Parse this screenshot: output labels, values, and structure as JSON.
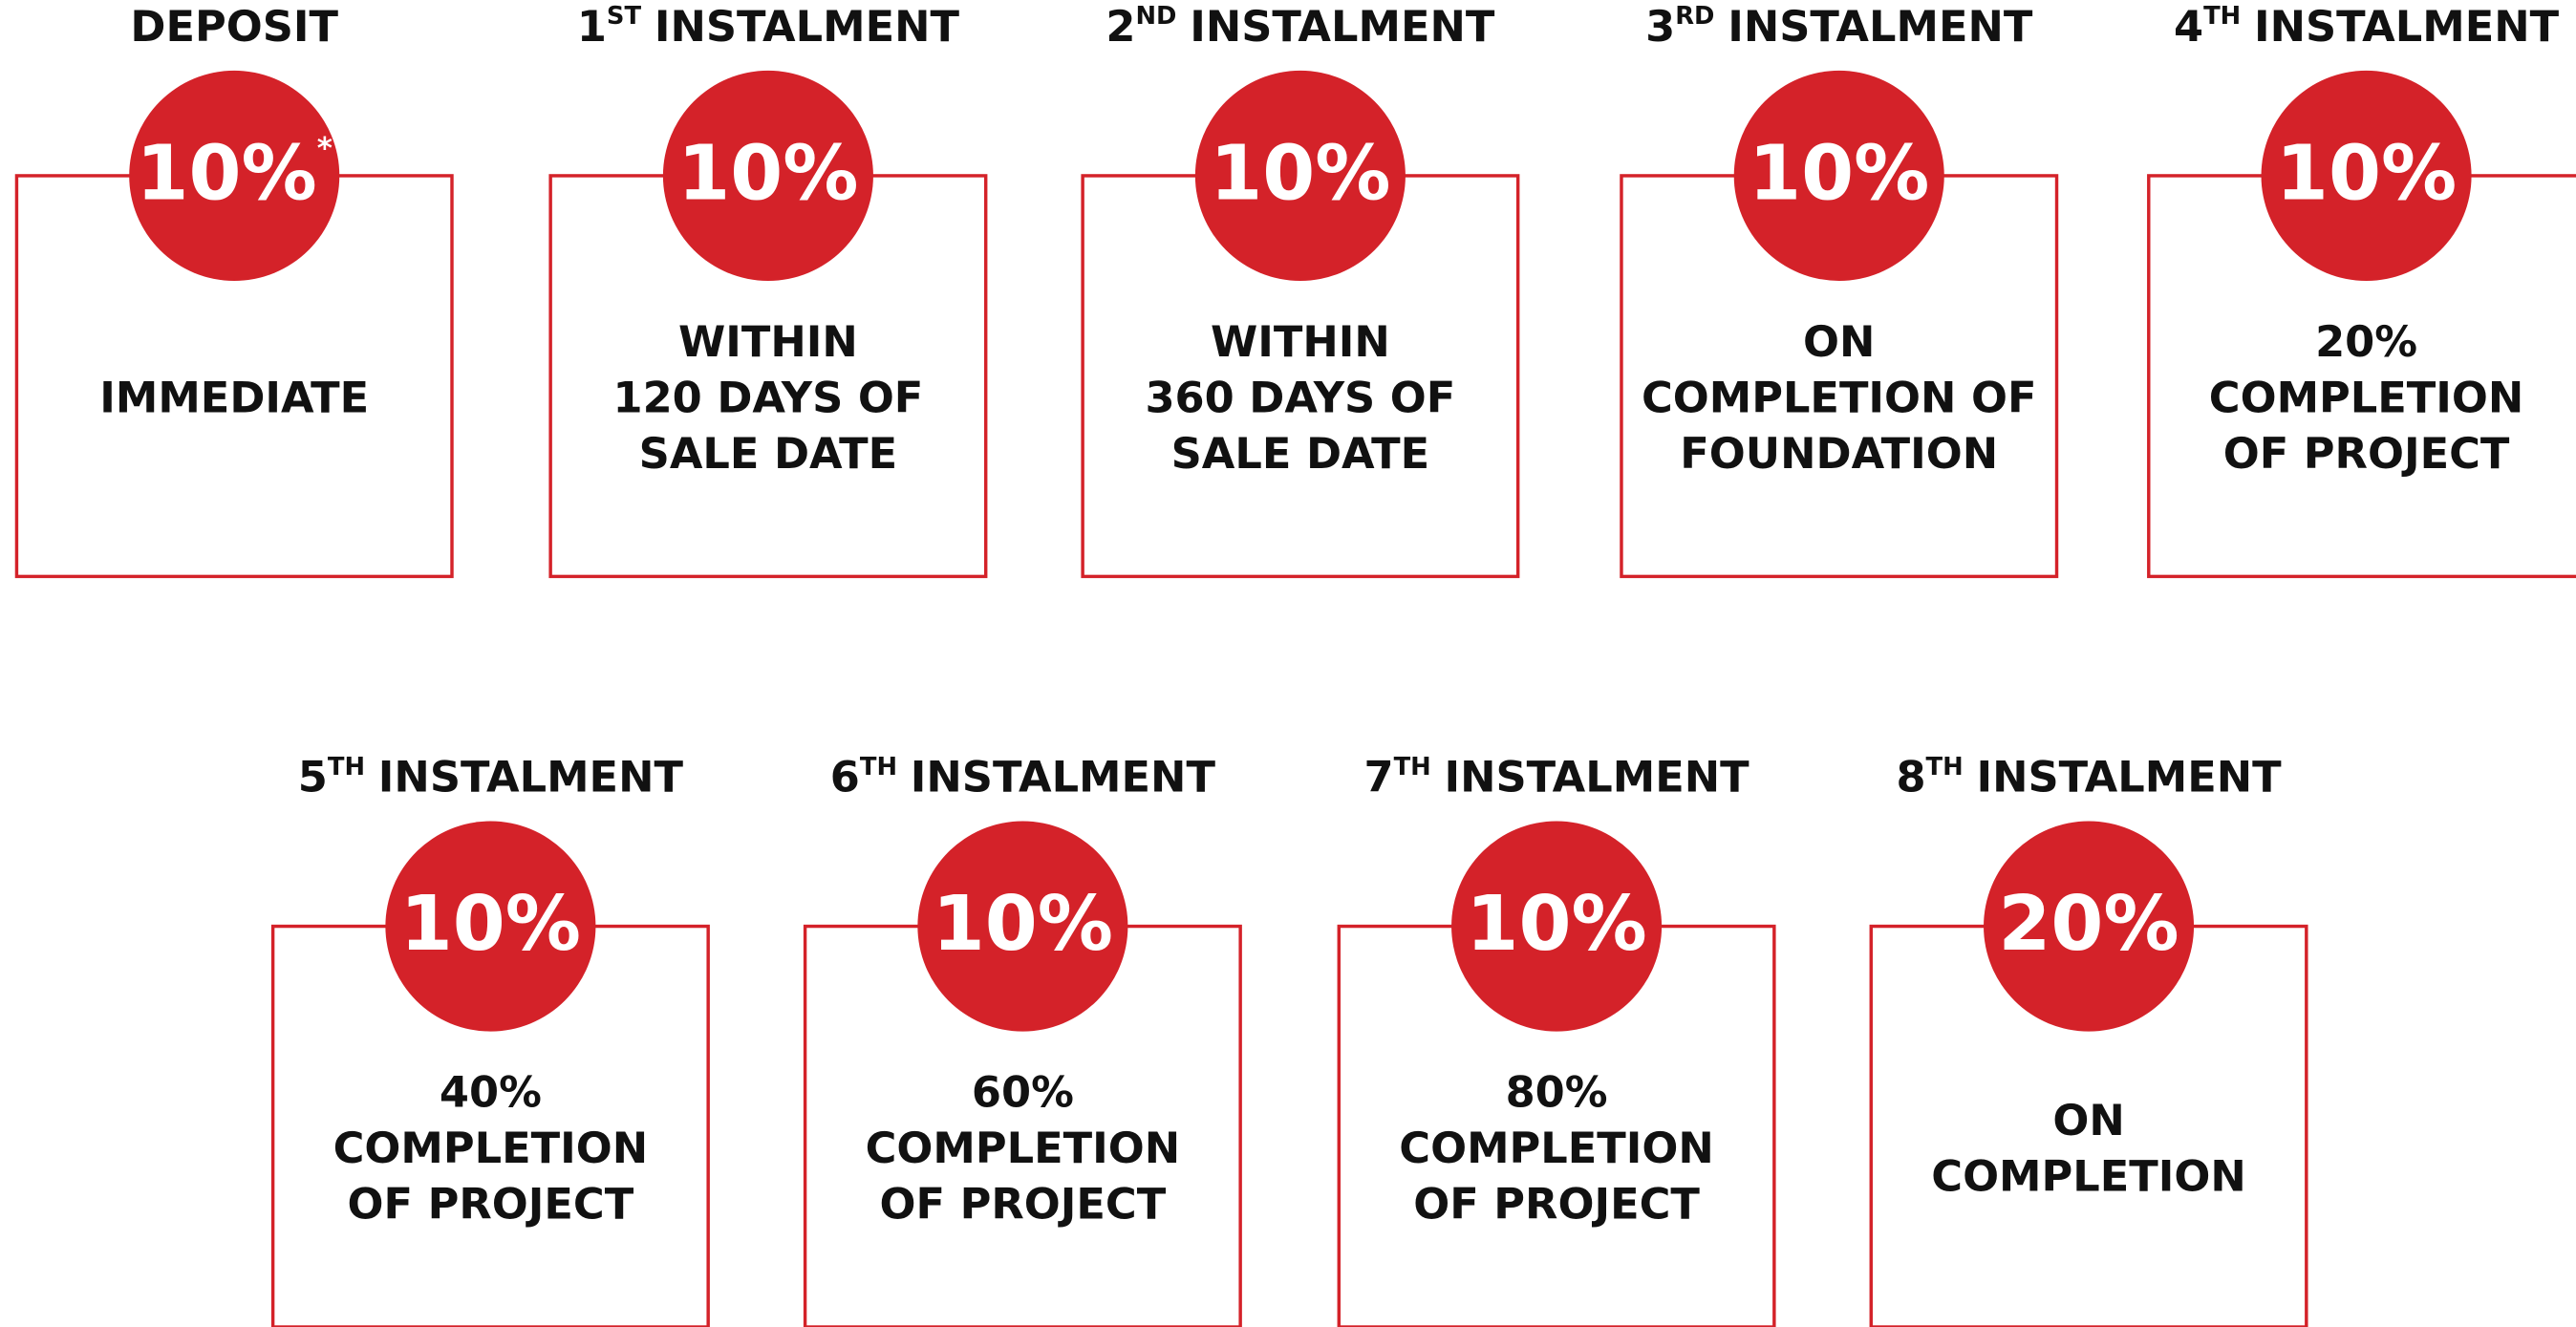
{
  "cards": [
    {
      "number": null,
      "suffix": null,
      "heading": "DEPOSIT",
      "percent": "10%",
      "note": "*",
      "lines": [
        "IMMEDIATE"
      ]
    },
    {
      "number": "1",
      "suffix": "ST",
      "heading": "INSTALMENT",
      "percent": "10%",
      "lines": [
        "WITHIN",
        "120 DAYS OF",
        "SALE DATE"
      ]
    },
    {
      "number": "2",
      "suffix": "ND",
      "heading": "INSTALMENT",
      "percent": "10%",
      "lines": [
        "WITHIN",
        "360 DAYS OF",
        "SALE DATE"
      ]
    },
    {
      "number": "3",
      "suffix": "RD",
      "heading": "INSTALMENT",
      "percent": "10%",
      "lines": [
        "ON",
        "COMPLETION OF",
        "FOUNDATION"
      ]
    },
    {
      "number": "4",
      "suffix": "TH",
      "heading": "INSTALMENT",
      "percent": "10%",
      "lines": [
        "20%",
        "COMPLETION",
        "OF PROJECT"
      ]
    },
    {
      "number": "5",
      "suffix": "TH",
      "heading": "INSTALMENT",
      "percent": "10%",
      "lines": [
        "40%",
        "COMPLETION",
        "OF PROJECT"
      ]
    },
    {
      "number": "6",
      "suffix": "TH",
      "heading": "INSTALMENT",
      "percent": "10%",
      "lines": [
        "60%",
        "COMPLETION",
        "OF PROJECT"
      ]
    },
    {
      "number": "7",
      "suffix": "TH",
      "heading": "INSTALMENT",
      "percent": "10%",
      "lines": [
        "80%",
        "COMPLETION",
        "OF PROJECT"
      ]
    },
    {
      "number": "8",
      "suffix": "TH",
      "heading": "INSTALMENT",
      "percent": "20%",
      "lines": [
        "ON",
        "COMPLETION"
      ]
    }
  ]
}
